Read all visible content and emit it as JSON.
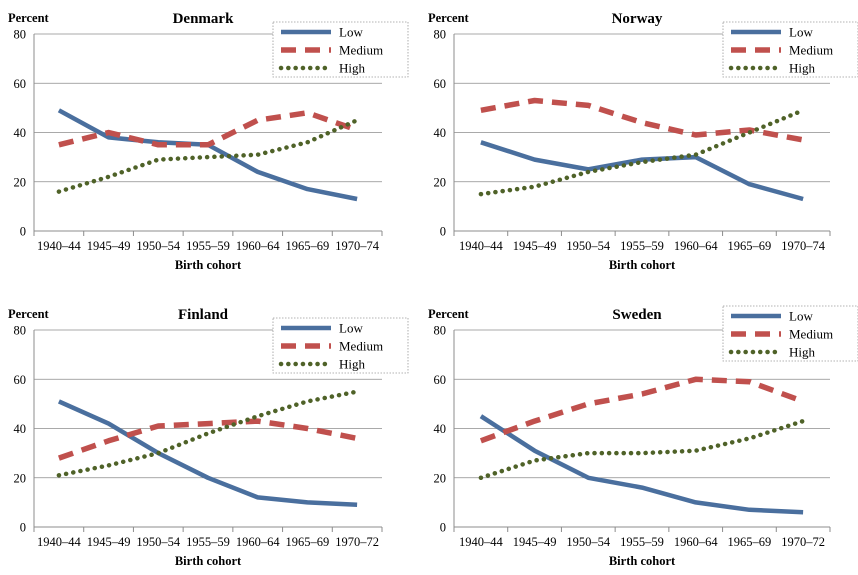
{
  "chart_data": [
    {
      "type": "line",
      "title": "Denmark",
      "ylabel": "Percent",
      "xlabel": "Birth cohort",
      "categories": [
        "1940–44",
        "1945–49",
        "1950–54",
        "1955–59",
        "1960–64",
        "1965–69",
        "1970–74"
      ],
      "ylim": [
        0,
        80
      ],
      "yticks": [
        "0",
        "20",
        "40",
        "60",
        "80"
      ],
      "grid": true,
      "legend": "top-right",
      "series": [
        {
          "name": "Low",
          "color": "#4a6f9e",
          "style": "solid",
          "values": [
            49,
            38,
            36,
            35,
            24,
            17,
            13
          ]
        },
        {
          "name": "Medium",
          "color": "#c0504d",
          "style": "dashed",
          "values": [
            35,
            40,
            35,
            35,
            45,
            48,
            41
          ]
        },
        {
          "name": "High",
          "color": "#4f6228",
          "style": "dotted",
          "values": [
            16,
            22,
            29,
            30,
            31,
            36,
            45
          ]
        }
      ]
    },
    {
      "type": "line",
      "title": "Norway",
      "ylabel": "Percent",
      "xlabel": "Birth cohort",
      "categories": [
        "1940–44",
        "1945–49",
        "1950–54",
        "1955–59",
        "1960–64",
        "1965–69",
        "1970–74"
      ],
      "ylim": [
        0,
        80
      ],
      "yticks": [
        "0",
        "20",
        "40",
        "60",
        "80"
      ],
      "grid": true,
      "legend": "top-right",
      "series": [
        {
          "name": "Low",
          "color": "#4a6f9e",
          "style": "solid",
          "values": [
            36,
            29,
            25,
            29,
            30,
            19,
            13
          ]
        },
        {
          "name": "Medium",
          "color": "#c0504d",
          "style": "dashed",
          "values": [
            49,
            53,
            51,
            44,
            39,
            41,
            37
          ]
        },
        {
          "name": "High",
          "color": "#4f6228",
          "style": "dotted",
          "values": [
            15,
            18,
            24,
            28,
            31,
            40,
            49
          ]
        }
      ]
    },
    {
      "type": "line",
      "title": "Finland",
      "ylabel": "Percent",
      "xlabel": "Birth cohort",
      "categories": [
        "1940–44",
        "1945–49",
        "1950–54",
        "1955–59",
        "1960–64",
        "1965–69",
        "1970–72"
      ],
      "ylim": [
        0,
        80
      ],
      "yticks": [
        "0",
        "20",
        "40",
        "60",
        "80"
      ],
      "grid": true,
      "legend": "top-right",
      "series": [
        {
          "name": "Low",
          "color": "#4a6f9e",
          "style": "solid",
          "values": [
            51,
            42,
            30,
            20,
            12,
            10,
            9
          ]
        },
        {
          "name": "Medium",
          "color": "#c0504d",
          "style": "dashed",
          "values": [
            28,
            35,
            41,
            42,
            43,
            40,
            36
          ]
        },
        {
          "name": "High",
          "color": "#4f6228",
          "style": "dotted",
          "values": [
            21,
            25,
            30,
            38,
            45,
            51,
            55
          ]
        }
      ]
    },
    {
      "type": "line",
      "title": "Sweden",
      "ylabel": "Percent",
      "xlabel": "Birth cohort",
      "categories": [
        "1940–44",
        "1945–49",
        "1950–54",
        "1955–59",
        "1960–64",
        "1965–69",
        "1970–72"
      ],
      "ylim": [
        0,
        80
      ],
      "yticks": [
        "0",
        "20",
        "40",
        "60",
        "80"
      ],
      "grid": true,
      "legend": "top-right",
      "series": [
        {
          "name": "Low",
          "color": "#4a6f9e",
          "style": "solid",
          "values": [
            45,
            31,
            20,
            16,
            10,
            7,
            6
          ]
        },
        {
          "name": "Medium",
          "color": "#c0504d",
          "style": "dashed",
          "values": [
            35,
            43,
            50,
            54,
            60,
            59,
            51
          ]
        },
        {
          "name": "High",
          "color": "#4f6228",
          "style": "dotted",
          "values": [
            20,
            27,
            30,
            30,
            31,
            36,
            43
          ]
        }
      ]
    }
  ]
}
